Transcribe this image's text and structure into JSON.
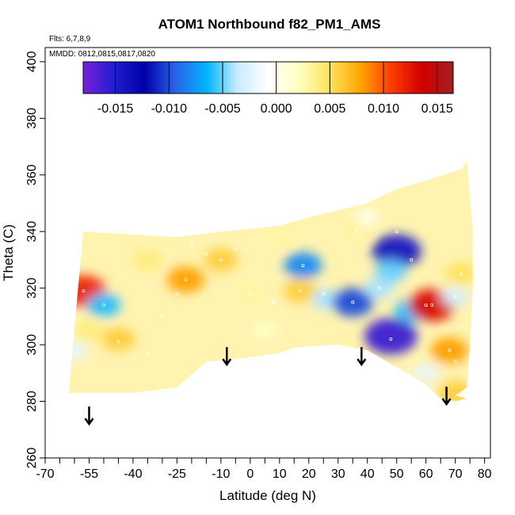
{
  "chart_data": {
    "type": "heatmap",
    "title": "ATOM1 Northbound f82_PM1_AMS",
    "subtitle_flights": "Flts: 6,7,8,9",
    "subtitle_dates": "MMDD: 0812,0815,0817,0820",
    "xlabel": "Latitude (deg N)",
    "ylabel": "Theta (C)",
    "xlim": [
      -70,
      82
    ],
    "ylim": [
      260,
      405
    ],
    "x_ticks": [
      -70,
      -55,
      -40,
      -25,
      -10,
      0,
      10,
      20,
      30,
      40,
      50,
      60,
      70,
      80
    ],
    "x_minor_ticks": [
      -65,
      -60,
      -50,
      -45,
      -35,
      -30,
      -20,
      -15,
      -5,
      5,
      15,
      25,
      35,
      45,
      55,
      65,
      75
    ],
    "y_ticks": [
      260,
      280,
      300,
      320,
      340,
      360,
      380,
      400
    ],
    "colorbar": {
      "min": -0.018,
      "max": 0.0165,
      "ticks": [
        -0.015,
        -0.01,
        -0.005,
        0.0,
        0.005,
        0.01,
        0.015
      ],
      "tick_labels": [
        "-0.015",
        "-0.010",
        "-0.005",
        "0.000",
        "0.005",
        "0.010",
        "0.015"
      ],
      "colors": [
        "#7a1fd9",
        "#1f1fd0",
        "#0000a8",
        "#2864e6",
        "#00b4ff",
        "#c8ecff",
        "#ffffff",
        "#ffffc0",
        "#ffe25a",
        "#ffa500",
        "#ff3a00",
        "#d00000",
        "#a02020"
      ]
    },
    "field_extent": {
      "lat_min": -62,
      "lat_max": 76,
      "theta_top": [
        [
          -57,
          340
        ],
        [
          -25,
          338
        ],
        [
          -10,
          340
        ],
        [
          10,
          342
        ],
        [
          20,
          345
        ],
        [
          40,
          350
        ],
        [
          50,
          355
        ],
        [
          60,
          358
        ],
        [
          72,
          362
        ],
        [
          74,
          365
        ],
        [
          75,
          352
        ],
        [
          76,
          340
        ],
        [
          76,
          320
        ],
        [
          75,
          300
        ],
        [
          74,
          285
        ],
        [
          70,
          282
        ]
      ],
      "theta_bottom": [
        [
          -62,
          283
        ],
        [
          -40,
          283
        ],
        [
          -25,
          285
        ],
        [
          -15,
          294
        ],
        [
          -5,
          295
        ],
        [
          10,
          297
        ],
        [
          15,
          299
        ],
        [
          30,
          300
        ],
        [
          40,
          298
        ],
        [
          50,
          292
        ],
        [
          60,
          286
        ],
        [
          65,
          281
        ],
        [
          70,
          280
        ],
        [
          74,
          281
        ]
      ]
    },
    "features": [
      {
        "lat": -57,
        "theta": 319,
        "value": 0.012
      },
      {
        "lat": -50,
        "theta": 314,
        "value": -0.006
      },
      {
        "lat": -45,
        "theta": 302,
        "value": 0.006
      },
      {
        "lat": -55,
        "theta": 305,
        "value": 0.004
      },
      {
        "lat": -60,
        "theta": 298,
        "value": -0.002
      },
      {
        "lat": -22,
        "theta": 323,
        "value": 0.008
      },
      {
        "lat": -10,
        "theta": 330,
        "value": 0.006
      },
      {
        "lat": -35,
        "theta": 330,
        "value": 0.004
      },
      {
        "lat": 0,
        "theta": 318,
        "value": 0.003
      },
      {
        "lat": 18,
        "theta": 328,
        "value": -0.008
      },
      {
        "lat": 17,
        "theta": 319,
        "value": 0.006
      },
      {
        "lat": 26,
        "theta": 316,
        "value": -0.004
      },
      {
        "lat": 35,
        "theta": 315,
        "value": -0.01
      },
      {
        "lat": 36,
        "theta": 340,
        "value": 0.003
      },
      {
        "lat": 44,
        "theta": 320,
        "value": -0.004
      },
      {
        "lat": 48,
        "theta": 303,
        "value": -0.016
      },
      {
        "lat": 50,
        "theta": 333,
        "value": -0.014
      },
      {
        "lat": 48,
        "theta": 326,
        "value": -0.005
      },
      {
        "lat": 55,
        "theta": 312,
        "value": -0.006
      },
      {
        "lat": 62,
        "theta": 314,
        "value": 0.013
      },
      {
        "lat": 68,
        "theta": 298,
        "value": 0.008
      },
      {
        "lat": 70,
        "theta": 317,
        "value": -0.003
      },
      {
        "lat": 72,
        "theta": 325,
        "value": 0.005
      },
      {
        "lat": 70,
        "theta": 283,
        "value": 0.006
      },
      {
        "lat": 60,
        "theta": 290,
        "value": -0.002
      },
      {
        "lat": 5,
        "theta": 305,
        "value": 0.002
      },
      {
        "lat": 40,
        "theta": 345,
        "value": 0.0
      },
      {
        "lat": 10,
        "theta": 338,
        "value": 0.003
      }
    ],
    "sample_points": [
      [
        -57,
        319
      ],
      [
        -50,
        314
      ],
      [
        -45,
        301
      ],
      [
        -35,
        297
      ],
      [
        -25,
        318
      ],
      [
        -22,
        323
      ],
      [
        -10,
        330
      ],
      [
        -5,
        334
      ],
      [
        0,
        318
      ],
      [
        8,
        315
      ],
      [
        18,
        328
      ],
      [
        17,
        319
      ],
      [
        25,
        318
      ],
      [
        35,
        315
      ],
      [
        36,
        340
      ],
      [
        44,
        320
      ],
      [
        48,
        302
      ],
      [
        60,
        314
      ],
      [
        62,
        314
      ],
      [
        70,
        317
      ],
      [
        72,
        325
      ],
      [
        68,
        298
      ],
      [
        70,
        294
      ],
      [
        -15,
        332
      ],
      [
        -20,
        336
      ],
      [
        -30,
        310
      ],
      [
        50,
        340
      ],
      [
        55,
        330
      ]
    ],
    "arrows": [
      {
        "lat": -55,
        "theta": 272
      },
      {
        "lat": -8,
        "theta": 293
      },
      {
        "lat": 38,
        "theta": 293
      },
      {
        "lat": 67,
        "theta": 279
      }
    ]
  }
}
